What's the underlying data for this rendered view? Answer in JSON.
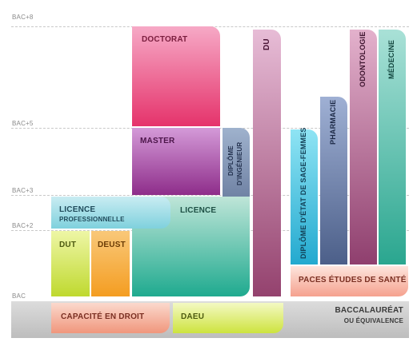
{
  "levels": [
    "BAC+8",
    "BAC+5",
    "BAC+3",
    "BAC+2",
    "BAC"
  ],
  "blocks": {
    "doctorat": "DOCTORAT",
    "master": "MASTER",
    "diplome_ingenieur_1": "DIPLÔME",
    "diplome_ingenieur_2": "D'INGÉNIEUR",
    "du": "DU",
    "licence_pro_1": "LICENCE",
    "licence_pro_2": "PROFESSIONNELLE",
    "licence": "LICENCE",
    "dut": "DUT",
    "deust": "DEUST",
    "sage_femmes": "DIPLÔME D'ÉTAT DE SAGE-FEMMES",
    "pharmacie": "PHARMACIE",
    "odontologie": "ODONTOLOGIE",
    "medecine": "MÉDECINE",
    "paces": "PACES ÉTUDES DE SANTÉ",
    "capacite": "CAPACITÉ EN DROIT",
    "daeu": "DAEU",
    "bac_1": "BACCALAURÉAT",
    "bac_2": "OU ÉQUIVALENCE"
  },
  "colors": {
    "doctorat": [
      "#f6a9c6",
      "#e5336b"
    ],
    "master": [
      "#d49ad8",
      "#8e2d8a"
    ],
    "diplome": [
      "#9fb2cd",
      "#5b6d92"
    ],
    "du": [
      "#e7bcd6",
      "#94426e"
    ],
    "licence_pro": [
      "#c9ecf2",
      "#7fd1dd"
    ],
    "licence": [
      "#bfe5d8",
      "#1faa8f"
    ],
    "dut": [
      "#eef6a6",
      "#bfd92f"
    ],
    "deust": [
      "#f9c879",
      "#f49d21"
    ],
    "sage": [
      "#8fe4f4",
      "#23a9cf"
    ],
    "pharma": [
      "#9fb0d4",
      "#4c5f89"
    ],
    "odonto": [
      "#e3b1cc",
      "#8f3f6e"
    ],
    "medecine": [
      "#a9e1d7",
      "#2aa68f"
    ],
    "paces": [
      "#fde5dd",
      "#f5a18e"
    ],
    "capacite": [
      "#fbd9cd",
      "#f0967c"
    ],
    "daeu": [
      "#f4f9c3",
      "#cde33e"
    ]
  }
}
